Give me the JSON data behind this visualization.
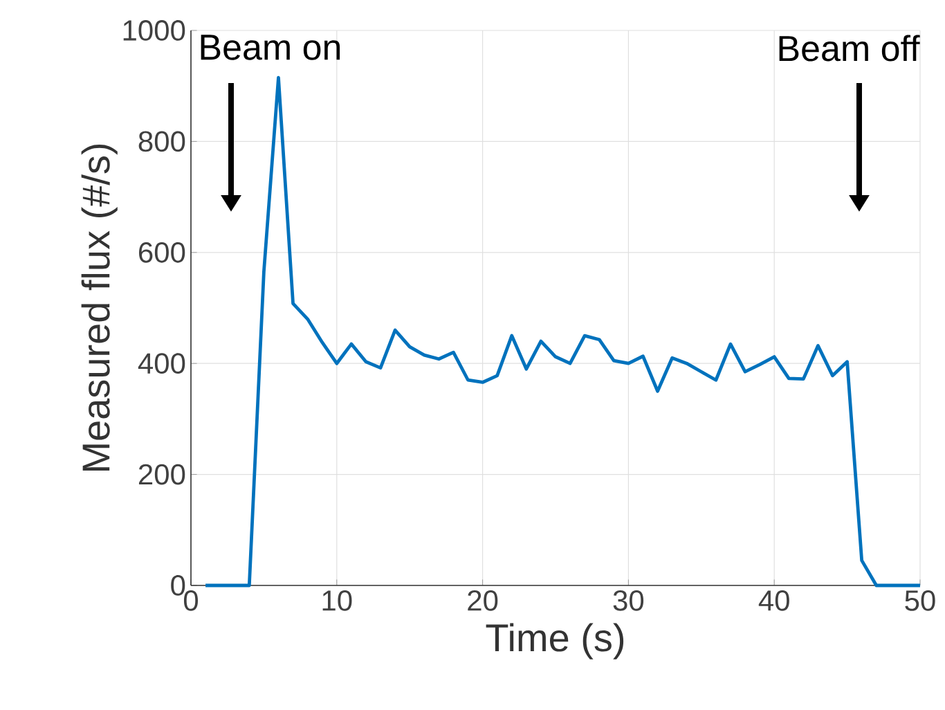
{
  "chart_data": {
    "type": "line",
    "xlabel": "Time (s)",
    "ylabel": "Measured flux (#/s)",
    "x": [
      1,
      2,
      3,
      4,
      5,
      6,
      7,
      8,
      9,
      10,
      11,
      12,
      13,
      14,
      15,
      16,
      17,
      18,
      19,
      20,
      21,
      22,
      23,
      24,
      25,
      26,
      27,
      28,
      29,
      30,
      31,
      32,
      33,
      34,
      35,
      36,
      37,
      38,
      39,
      40,
      41,
      42,
      43,
      44,
      45,
      46,
      47,
      48,
      49,
      50
    ],
    "series": [
      {
        "color": "#0072bd",
        "values": [
          0,
          0,
          0,
          0,
          565,
          915,
          508,
          480,
          438,
          400,
          435,
          403,
          392,
          460,
          430,
          415,
          408,
          420,
          370,
          366,
          378,
          450,
          390,
          440,
          412,
          400,
          450,
          443,
          405,
          400,
          413,
          350,
          410,
          400,
          385,
          370,
          435,
          385,
          398,
          412,
          373,
          372,
          432,
          378,
          403,
          45,
          0,
          0,
          0,
          0
        ]
      }
    ],
    "xlim": [
      0,
      50
    ],
    "xticks": [
      0,
      10,
      20,
      30,
      40,
      50
    ],
    "ylim": [
      0,
      1000
    ],
    "yticks": [
      0,
      200,
      400,
      600,
      800,
      1000
    ],
    "grid": true,
    "marker": "none",
    "line_style": "solid",
    "annotations": [
      "Beam on",
      "Beam off"
    ]
  }
}
